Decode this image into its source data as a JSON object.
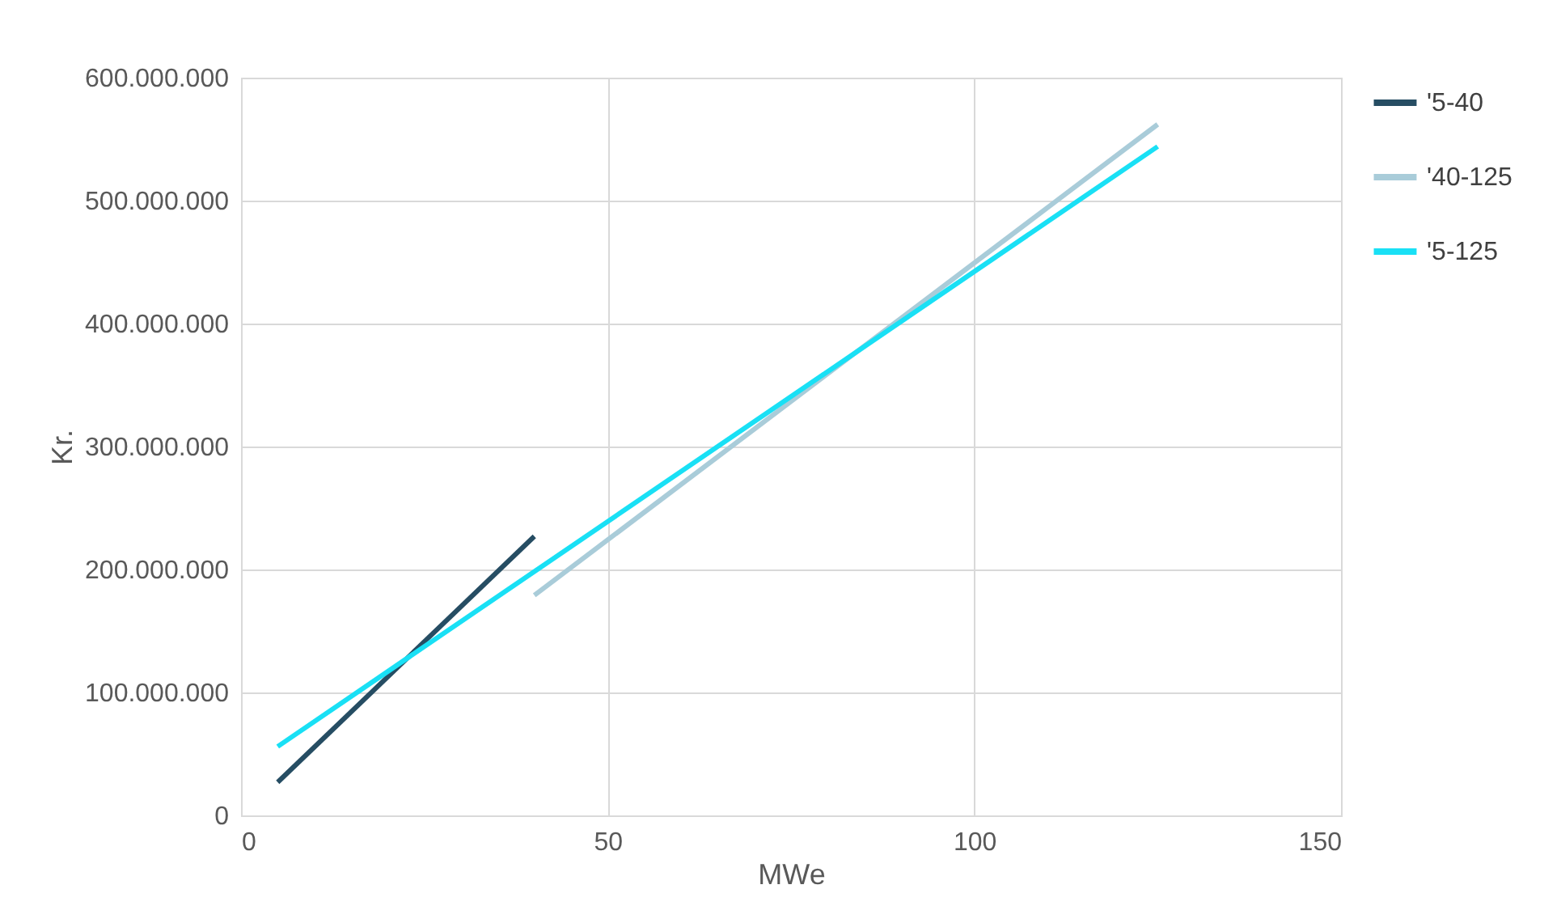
{
  "chart_data": {
    "type": "line",
    "xlabel": "MWe",
    "ylabel": "Kr.",
    "series": [
      {
        "name": "'5-40",
        "color": "#264d63",
        "x": [
          5,
          40
        ],
        "values": [
          27000000,
          227000000
        ]
      },
      {
        "name": "'40-125",
        "color": "#a9ccd9",
        "x": [
          40,
          125
        ],
        "values": [
          179000000,
          562000000
        ]
      },
      {
        "name": "'5-125",
        "color": "#19e0f5",
        "x": [
          5,
          125
        ],
        "values": [
          56000000,
          544000000
        ]
      }
    ],
    "xlim": [
      0,
      150
    ],
    "xticks": [
      0,
      50,
      100,
      150
    ],
    "ylim": [
      0,
      600000000
    ],
    "yticks": [
      0,
      {
        "value": 100000000,
        "label": "100.000.000"
      },
      {
        "value": 200000000,
        "label": "200.000.000"
      },
      {
        "value": 300000000,
        "label": "300.000.000"
      },
      {
        "value": 400000000,
        "label": "400.000.000"
      },
      {
        "value": 500000000,
        "label": "500.000.000"
      },
      {
        "value": 600000000,
        "label": "600.000.000"
      }
    ],
    "grid": true,
    "legend": "right",
    "marker": "none",
    "line_style": "solid"
  }
}
